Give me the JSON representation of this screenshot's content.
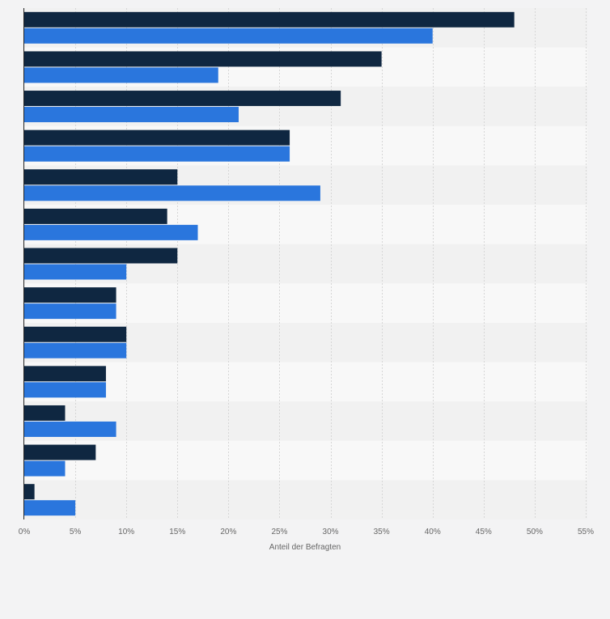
{
  "chart_data": {
    "type": "bar",
    "orientation": "horizontal",
    "categories": [
      "",
      "",
      "",
      "",
      "",
      "",
      "",
      "",
      "",
      "",
      "",
      "",
      ""
    ],
    "series": [
      {
        "color": "#0f2741",
        "values": [
          48,
          35,
          31,
          26,
          15,
          14,
          15,
          9,
          10,
          8,
          4,
          7,
          1
        ]
      },
      {
        "color": "#2a76dd",
        "values": [
          40,
          19,
          21,
          26,
          29,
          17,
          10,
          9,
          10,
          8,
          9,
          4,
          5
        ]
      }
    ],
    "xlim": [
      0,
      55
    ],
    "xticks": [
      0,
      5,
      10,
      15,
      20,
      25,
      30,
      35,
      40,
      45,
      50,
      55
    ],
    "tick_suffix": "%",
    "xlabel": "Anteil der Befragten",
    "grid": true
  }
}
